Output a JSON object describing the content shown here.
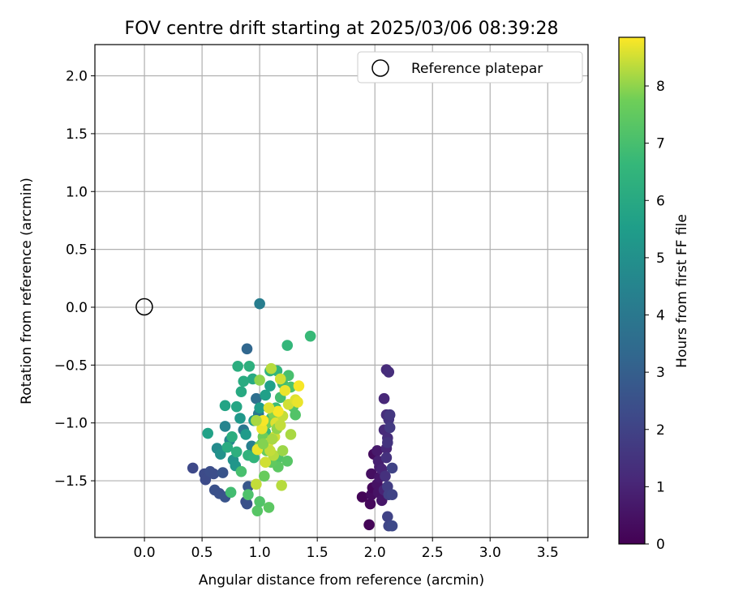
{
  "chart_data": {
    "type": "scatter",
    "title": "FOV centre drift starting at 2025/03/06 08:39:28",
    "xlabel": "Angular distance from reference (arcmin)",
    "ylabel": "Rotation from reference (arcmin)",
    "xlim": [
      -0.43,
      3.85
    ],
    "ylim": [
      -1.99,
      2.27
    ],
    "xticks": [
      0.0,
      0.5,
      1.0,
      1.5,
      2.0,
      2.5,
      3.0,
      3.5
    ],
    "xtick_labels": [
      "0.0",
      "0.5",
      "1.0",
      "1.5",
      "2.0",
      "2.5",
      "3.0",
      "3.5"
    ],
    "yticks": [
      -1.5,
      -1.0,
      -0.5,
      0.0,
      0.5,
      1.0,
      1.5,
      2.0
    ],
    "ytick_labels": [
      "−1.5",
      "−1.0",
      "−0.5",
      "0.0",
      "0.5",
      "1.0",
      "1.5",
      "2.0"
    ],
    "grid": true,
    "legend": {
      "placement": "top-right",
      "entries": [
        "Reference platepar"
      ]
    },
    "reference_point": {
      "name": "Reference platepar",
      "x": 0.0,
      "y": 0.0
    },
    "colorbar": {
      "label": "Hours from first FF file",
      "colormap": "viridis",
      "range": [
        0,
        8.85
      ],
      "ticks": [
        0,
        1,
        2,
        3,
        4,
        5,
        6,
        7,
        8
      ],
      "tick_labels": [
        "0",
        "1",
        "2",
        "3",
        "4",
        "5",
        "6",
        "7",
        "8"
      ]
    },
    "points": [
      {
        "x": 1.89,
        "y": -1.64,
        "h": 0.1
      },
      {
        "x": 1.95,
        "y": -1.88,
        "h": 0.1
      },
      {
        "x": 1.96,
        "y": -1.7,
        "h": 0.2
      },
      {
        "x": 1.97,
        "y": -1.62,
        "h": 0.3
      },
      {
        "x": 1.98,
        "y": -1.56,
        "h": 0.2
      },
      {
        "x": 1.99,
        "y": -1.27,
        "h": 0.3
      },
      {
        "x": 1.97,
        "y": -1.44,
        "h": 0.4
      },
      {
        "x": 2.02,
        "y": -1.53,
        "h": 0.5
      },
      {
        "x": 2.04,
        "y": -1.47,
        "h": 0.6
      },
      {
        "x": 2.03,
        "y": -1.6,
        "h": 0.5
      },
      {
        "x": 2.06,
        "y": -1.67,
        "h": 0.6
      },
      {
        "x": 2.02,
        "y": -1.24,
        "h": 0.7
      },
      {
        "x": 2.04,
        "y": -1.38,
        "h": 0.8
      },
      {
        "x": 2.03,
        "y": -1.33,
        "h": 0.9
      },
      {
        "x": 2.06,
        "y": -1.4,
        "h": 1.0
      },
      {
        "x": 2.08,
        "y": -1.58,
        "h": 1.0
      },
      {
        "x": 2.1,
        "y": -1.22,
        "h": 1.1
      },
      {
        "x": 2.08,
        "y": -1.06,
        "h": 1.2
      },
      {
        "x": 2.1,
        "y": -0.93,
        "h": 1.3
      },
      {
        "x": 2.08,
        "y": -0.79,
        "h": 1.1
      },
      {
        "x": 2.11,
        "y": -1.13,
        "h": 1.3
      },
      {
        "x": 2.1,
        "y": -1.3,
        "h": 1.4
      },
      {
        "x": 2.12,
        "y": -0.97,
        "h": 1.5
      },
      {
        "x": 2.11,
        "y": -1.17,
        "h": 1.5
      },
      {
        "x": 2.09,
        "y": -1.46,
        "h": 1.4
      },
      {
        "x": 2.1,
        "y": -0.54,
        "h": 1.2
      },
      {
        "x": 2.12,
        "y": -0.56,
        "h": 1.3
      },
      {
        "x": 2.13,
        "y": -0.93,
        "h": 1.6
      },
      {
        "x": 2.13,
        "y": -1.04,
        "h": 1.7
      },
      {
        "x": 2.11,
        "y": -1.55,
        "h": 1.8
      },
      {
        "x": 2.12,
        "y": -1.62,
        "h": 1.9
      },
      {
        "x": 2.15,
        "y": -1.62,
        "h": 2.0
      },
      {
        "x": 2.15,
        "y": -1.39,
        "h": 2.0
      },
      {
        "x": 2.11,
        "y": -1.81,
        "h": 2.0
      },
      {
        "x": 2.12,
        "y": -1.89,
        "h": 2.1
      },
      {
        "x": 2.15,
        "y": -1.89,
        "h": 2.2
      },
      {
        "x": 0.42,
        "y": -1.39,
        "h": 2.2
      },
      {
        "x": 0.52,
        "y": -1.44,
        "h": 2.3
      },
      {
        "x": 0.53,
        "y": -1.49,
        "h": 2.3
      },
      {
        "x": 0.57,
        "y": -1.42,
        "h": 2.4
      },
      {
        "x": 0.6,
        "y": -1.44,
        "h": 2.4
      },
      {
        "x": 0.61,
        "y": -1.58,
        "h": 2.5
      },
      {
        "x": 0.65,
        "y": -1.61,
        "h": 2.5
      },
      {
        "x": 0.68,
        "y": -1.43,
        "h": 2.6
      },
      {
        "x": 0.7,
        "y": -1.64,
        "h": 2.6
      },
      {
        "x": 0.88,
        "y": -1.68,
        "h": 2.4
      },
      {
        "x": 0.89,
        "y": -1.7,
        "h": 2.5
      },
      {
        "x": 0.9,
        "y": -1.55,
        "h": 2.7
      },
      {
        "x": 0.89,
        "y": -0.36,
        "h": 3.3
      },
      {
        "x": 1.0,
        "y": 0.03,
        "h": 4.2
      },
      {
        "x": 0.97,
        "y": -0.79,
        "h": 3.6
      },
      {
        "x": 0.99,
        "y": -0.92,
        "h": 4.0
      },
      {
        "x": 0.86,
        "y": -1.06,
        "h": 3.9
      },
      {
        "x": 0.93,
        "y": -1.2,
        "h": 4.3
      },
      {
        "x": 0.7,
        "y": -1.03,
        "h": 4.5
      },
      {
        "x": 0.74,
        "y": -1.15,
        "h": 4.6
      },
      {
        "x": 0.63,
        "y": -1.22,
        "h": 4.8
      },
      {
        "x": 0.66,
        "y": -1.27,
        "h": 5.0
      },
      {
        "x": 0.77,
        "y": -1.32,
        "h": 5.1
      },
      {
        "x": 0.79,
        "y": -1.37,
        "h": 5.2
      },
      {
        "x": 0.83,
        "y": -0.96,
        "h": 5.3
      },
      {
        "x": 0.88,
        "y": -1.1,
        "h": 5.4
      },
      {
        "x": 0.95,
        "y": -0.98,
        "h": 5.4
      },
      {
        "x": 1.0,
        "y": -0.87,
        "h": 5.5
      },
      {
        "x": 1.05,
        "y": -0.76,
        "h": 5.6
      },
      {
        "x": 1.09,
        "y": -0.68,
        "h": 5.6
      },
      {
        "x": 0.55,
        "y": -1.09,
        "h": 5.7
      },
      {
        "x": 0.7,
        "y": -0.85,
        "h": 5.8
      },
      {
        "x": 0.8,
        "y": -0.86,
        "h": 5.9
      },
      {
        "x": 0.84,
        "y": -0.73,
        "h": 6.0
      },
      {
        "x": 0.94,
        "y": -0.62,
        "h": 6.0
      },
      {
        "x": 0.86,
        "y": -0.64,
        "h": 6.1
      },
      {
        "x": 0.81,
        "y": -0.51,
        "h": 6.2
      },
      {
        "x": 0.91,
        "y": -0.51,
        "h": 6.3
      },
      {
        "x": 1.09,
        "y": -0.55,
        "h": 6.4
      },
      {
        "x": 1.15,
        "y": -0.55,
        "h": 6.5
      },
      {
        "x": 1.24,
        "y": -0.33,
        "h": 6.6
      },
      {
        "x": 1.44,
        "y": -0.25,
        "h": 6.7
      },
      {
        "x": 0.72,
        "y": -1.21,
        "h": 6.1
      },
      {
        "x": 0.76,
        "y": -1.12,
        "h": 6.2
      },
      {
        "x": 0.8,
        "y": -1.25,
        "h": 6.3
      },
      {
        "x": 0.9,
        "y": -1.28,
        "h": 6.4
      },
      {
        "x": 0.95,
        "y": -1.3,
        "h": 6.5
      },
      {
        "x": 1.02,
        "y": -1.18,
        "h": 6.6
      },
      {
        "x": 1.05,
        "y": -1.08,
        "h": 6.7
      },
      {
        "x": 1.1,
        "y": -0.96,
        "h": 6.8
      },
      {
        "x": 1.14,
        "y": -0.87,
        "h": 6.8
      },
      {
        "x": 1.18,
        "y": -0.78,
        "h": 6.9
      },
      {
        "x": 1.2,
        "y": -0.66,
        "h": 6.9
      },
      {
        "x": 1.25,
        "y": -0.59,
        "h": 7.0
      },
      {
        "x": 1.27,
        "y": -0.69,
        "h": 7.1
      },
      {
        "x": 1.29,
        "y": -0.86,
        "h": 7.2
      },
      {
        "x": 1.31,
        "y": -0.93,
        "h": 7.2
      },
      {
        "x": 1.16,
        "y": -1.3,
        "h": 7.2
      },
      {
        "x": 1.24,
        "y": -1.33,
        "h": 7.3
      },
      {
        "x": 1.16,
        "y": -1.38,
        "h": 7.4
      },
      {
        "x": 1.1,
        "y": -1.34,
        "h": 7.5
      },
      {
        "x": 1.06,
        "y": -1.24,
        "h": 7.6
      },
      {
        "x": 1.0,
        "y": -1.2,
        "h": 7.7
      },
      {
        "x": 1.03,
        "y": -1.12,
        "h": 7.7
      },
      {
        "x": 1.07,
        "y": -1.0,
        "h": 7.8
      },
      {
        "x": 1.12,
        "y": -0.92,
        "h": 7.9
      },
      {
        "x": 0.84,
        "y": -1.42,
        "h": 7.0
      },
      {
        "x": 0.75,
        "y": -1.6,
        "h": 6.9
      },
      {
        "x": 0.9,
        "y": -1.62,
        "h": 7.1
      },
      {
        "x": 0.98,
        "y": -1.76,
        "h": 7.3
      },
      {
        "x": 1.0,
        "y": -1.68,
        "h": 7.2
      },
      {
        "x": 1.08,
        "y": -1.73,
        "h": 7.4
      },
      {
        "x": 0.97,
        "y": -1.53,
        "h": 8.4
      },
      {
        "x": 1.19,
        "y": -1.54,
        "h": 8.3
      },
      {
        "x": 1.04,
        "y": -1.46,
        "h": 7.6
      },
      {
        "x": 1.13,
        "y": -1.12,
        "h": 8.5
      },
      {
        "x": 1.07,
        "y": -1.18,
        "h": 8.6
      },
      {
        "x": 1.02,
        "y": -1.05,
        "h": 8.7
      },
      {
        "x": 1.14,
        "y": -1.0,
        "h": 8.6
      },
      {
        "x": 1.2,
        "y": -0.94,
        "h": 8.4
      },
      {
        "x": 1.25,
        "y": -0.84,
        "h": 8.5
      },
      {
        "x": 1.31,
        "y": -0.8,
        "h": 8.6
      },
      {
        "x": 1.34,
        "y": -0.68,
        "h": 8.8
      },
      {
        "x": 1.33,
        "y": -0.82,
        "h": 8.7
      },
      {
        "x": 1.1,
        "y": -0.53,
        "h": 8.3
      },
      {
        "x": 1.18,
        "y": -0.62,
        "h": 8.5
      },
      {
        "x": 1.22,
        "y": -0.72,
        "h": 8.7
      },
      {
        "x": 1.16,
        "y": -0.9,
        "h": 8.8
      },
      {
        "x": 1.08,
        "y": -0.87,
        "h": 8.6
      },
      {
        "x": 0.98,
        "y": -1.23,
        "h": 8.7
      },
      {
        "x": 1.05,
        "y": -1.34,
        "h": 8.5
      },
      {
        "x": 1.12,
        "y": -1.28,
        "h": 8.3
      },
      {
        "x": 1.03,
        "y": -0.98,
        "h": 8.8
      },
      {
        "x": 1.0,
        "y": -0.63,
        "h": 8.0
      },
      {
        "x": 1.2,
        "y": -1.24,
        "h": 8.1
      },
      {
        "x": 1.27,
        "y": -1.1,
        "h": 8.2
      },
      {
        "x": 1.09,
        "y": -1.24,
        "h": 8.4
      },
      {
        "x": 0.97,
        "y": -0.98,
        "h": 8.2
      },
      {
        "x": 1.15,
        "y": -1.05,
        "h": 8.0
      },
      {
        "x": 1.03,
        "y": -1.18,
        "h": 7.9
      },
      {
        "x": 1.11,
        "y": -1.14,
        "h": 8.2
      },
      {
        "x": 1.18,
        "y": -1.02,
        "h": 8.4
      }
    ]
  }
}
